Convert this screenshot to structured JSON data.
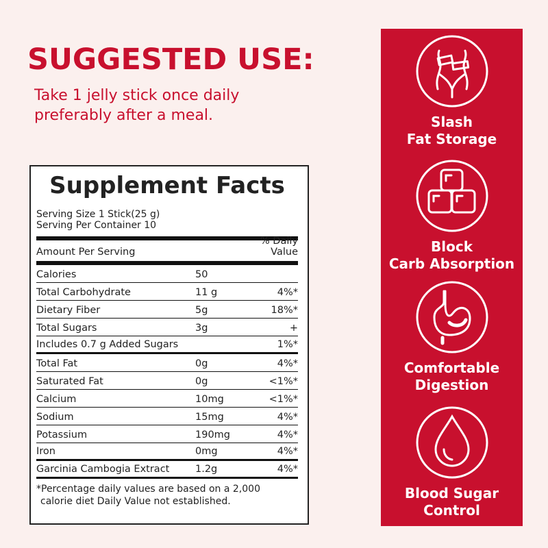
{
  "heading": "SUGGESTED USE:",
  "usage": [
    "Take 1 jelly stick once daily",
    "preferably after a meal."
  ],
  "facts": {
    "title": "Supplement Facts",
    "serving_size": "Serving Size 1 Stick(25 g)",
    "servings": "Serving Per Container 10",
    "header_left": "Amount Per Serving",
    "header_right": "% Daily Value",
    "rows": [
      {
        "name": "Calories",
        "amount": "50",
        "dv": ""
      },
      {
        "name": "Total Carbohydrate",
        "amount": "11 g",
        "dv": "4%*"
      },
      {
        "name": "Dietary Fiber",
        "amount": "5g",
        "dv": "18%*"
      },
      {
        "name": "Total Sugars",
        "amount": "3g",
        "dv": "+"
      },
      {
        "name": "Includes 0.7 g Added Sugars",
        "amount": "",
        "dv": "1%*"
      },
      {
        "name": "Total Fat",
        "amount": "0g",
        "dv": "4%*"
      },
      {
        "name": "Saturated Fat",
        "amount": "0g",
        "dv": "<1%*"
      },
      {
        "name": "Calcium",
        "amount": "10mg",
        "dv": "<1%*"
      },
      {
        "name": "Sodium",
        "amount": "15mg",
        "dv": "4%*"
      },
      {
        "name": "Potassium",
        "amount": "190mg",
        "dv": "4%*"
      },
      {
        "name": "Iron",
        "amount": "0mg",
        "dv": "4%*"
      },
      {
        "name": "Garcinia Cambogia Extract",
        "amount": "1.2g",
        "dv": "4%*"
      }
    ],
    "footnote": [
      "*Percentage daily values are based on a 2,000",
      "calorie diet Daily Value not established."
    ]
  },
  "benefits": [
    {
      "icon": "waist-measure-icon",
      "label": "Slash\nFat Storage"
    },
    {
      "icon": "cubes-icon",
      "label": "Block\nCarb Absorption"
    },
    {
      "icon": "stomach-icon",
      "label": "Comfortable\nDigestion"
    },
    {
      "icon": "blood-drop-icon",
      "label": "Blood Sugar\nControl"
    }
  ],
  "colors": {
    "accent": "#c8102e",
    "background": "#fbf0ee"
  }
}
